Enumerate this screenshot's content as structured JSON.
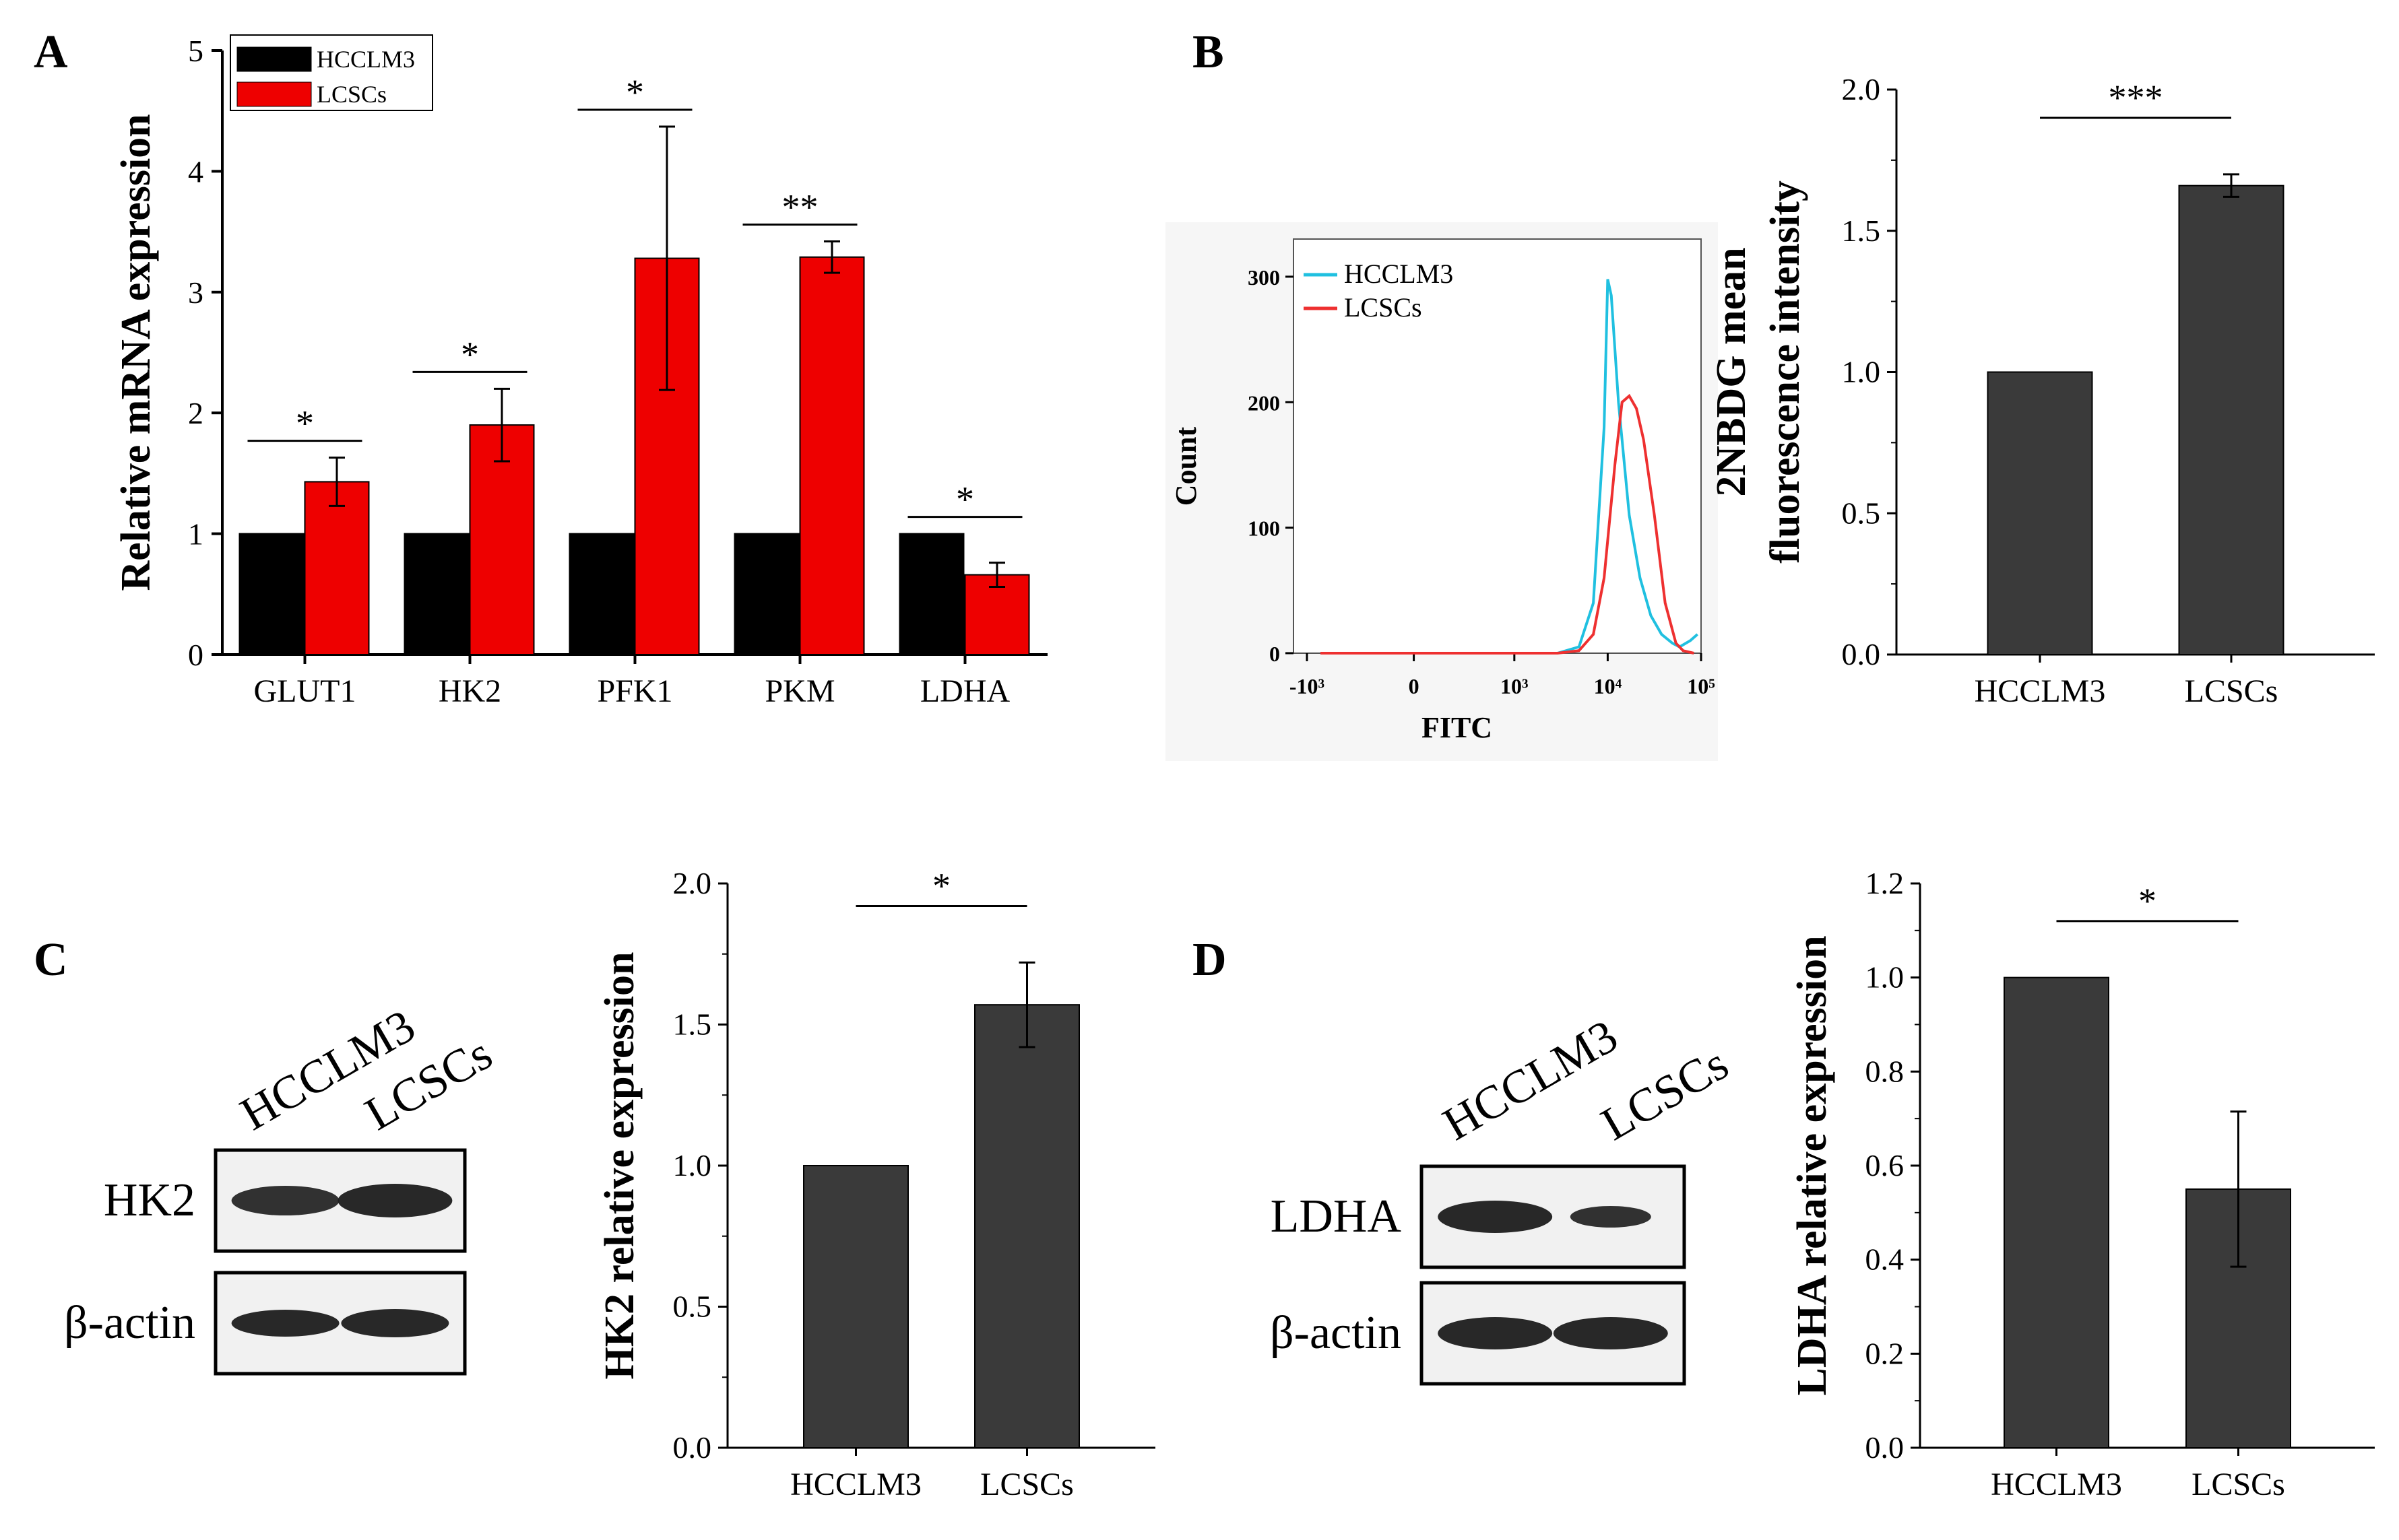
{
  "panels": {
    "A": {
      "letter": "A",
      "chart_data": {
        "type": "bar",
        "ylabel": "Relative mRNA expression",
        "ylim": [
          0,
          5
        ],
        "yticks": [
          "0",
          "1",
          "2",
          "3",
          "4",
          "5"
        ],
        "categories": [
          "GLUT1",
          "HK2",
          "PFK1",
          "PKM",
          "LDHA"
        ],
        "series": [
          {
            "name": "HCCLM3",
            "color": "#000000",
            "values": [
              1,
              1,
              1,
              1,
              1
            ],
            "errors": [
              0,
              0,
              0,
              0,
              0
            ]
          },
          {
            "name": "LCSCs",
            "color": "#ee0000",
            "values": [
              1.43,
              1.9,
              3.28,
              3.29,
              0.66
            ],
            "errors": [
              0.2,
              0.3,
              1.09,
              0.13,
              0.1
            ]
          }
        ],
        "significance": [
          "*",
          "*",
          "*",
          "**",
          "*"
        ],
        "legend": "top-left"
      }
    },
    "B_flow": {
      "letter": "B",
      "chart_data": {
        "type": "line",
        "xlabel": "FITC",
        "ylabel": "Count",
        "ylim": [
          0,
          330
        ],
        "yticks": [
          "0",
          "100",
          "200",
          "300"
        ],
        "xticks": [
          "-10³",
          "0",
          "10³",
          "10⁴",
          "10⁵"
        ],
        "series": [
          {
            "name": "HCCLM3",
            "color": "#20c0e0",
            "x": [
              0,
              1.3,
              2.7,
              3.3,
              3.6,
              3.8,
              3.95,
              4.0,
              4.05,
              4.15,
              4.3,
              4.45,
              4.6,
              4.75,
              4.9,
              5.0,
              5.15,
              5.25
            ],
            "y": [
              0,
              0,
              0,
              0,
              5,
              40,
              180,
              298,
              285,
              200,
              110,
              60,
              30,
              15,
              8,
              5,
              10,
              15
            ]
          },
          {
            "name": "LCSCs",
            "color": "#ee3030",
            "x": [
              0,
              1.3,
              2.7,
              3.3,
              3.6,
              3.8,
              3.95,
              4.1,
              4.2,
              4.3,
              4.4,
              4.5,
              4.65,
              4.8,
              4.95,
              5.05,
              5.2
            ],
            "y": [
              0,
              0,
              0,
              0,
              2,
              15,
              60,
              150,
              200,
              205,
              195,
              170,
              110,
              40,
              8,
              2,
              0
            ]
          }
        ],
        "legend": "top-left"
      }
    },
    "B_bar": {
      "chart_data": {
        "type": "bar",
        "ylabel_lines": [
          "2NBDG mean",
          "fluorescence intensity"
        ],
        "ylim": [
          0,
          2
        ],
        "yticks": [
          "0.0",
          "0.5",
          "1.0",
          "1.5",
          "2.0"
        ],
        "categories": [
          "HCCLM3",
          "LCSCs"
        ],
        "values": [
          1.0,
          1.66
        ],
        "errors": [
          0,
          0.04
        ],
        "color": "#3a3a3a",
        "significance": "***"
      }
    },
    "C_blot": {
      "letter": "C",
      "lanes": [
        "HCCLM3",
        "LCSCs"
      ],
      "rows": [
        "HK2",
        "β-actin"
      ]
    },
    "C_bar": {
      "chart_data": {
        "type": "bar",
        "ylabel": "HK2 relative expression",
        "ylim": [
          0,
          2
        ],
        "yticks": [
          "0.0",
          "0.5",
          "1.0",
          "1.5",
          "2.0"
        ],
        "categories": [
          "HCCLM3",
          "LCSCs"
        ],
        "values": [
          1.0,
          1.57
        ],
        "errors": [
          0,
          0.15
        ],
        "color": "#3a3a3a",
        "significance": "*"
      }
    },
    "D_blot": {
      "letter": "D",
      "lanes": [
        "HCCLM3",
        "LCSCs"
      ],
      "rows": [
        "LDHA",
        "β-actin"
      ]
    },
    "D_bar": {
      "chart_data": {
        "type": "bar",
        "ylabel": "LDHA relative expression",
        "ylim": [
          0,
          1.2
        ],
        "yticks": [
          "0.0",
          "0.2",
          "0.4",
          "0.6",
          "0.8",
          "1.0",
          "1.2"
        ],
        "categories": [
          "HCCLM3",
          "LCSCs"
        ],
        "values": [
          1.0,
          0.55
        ],
        "errors": [
          0,
          0.165
        ],
        "color": "#3a3a3a",
        "significance": "*"
      }
    }
  }
}
